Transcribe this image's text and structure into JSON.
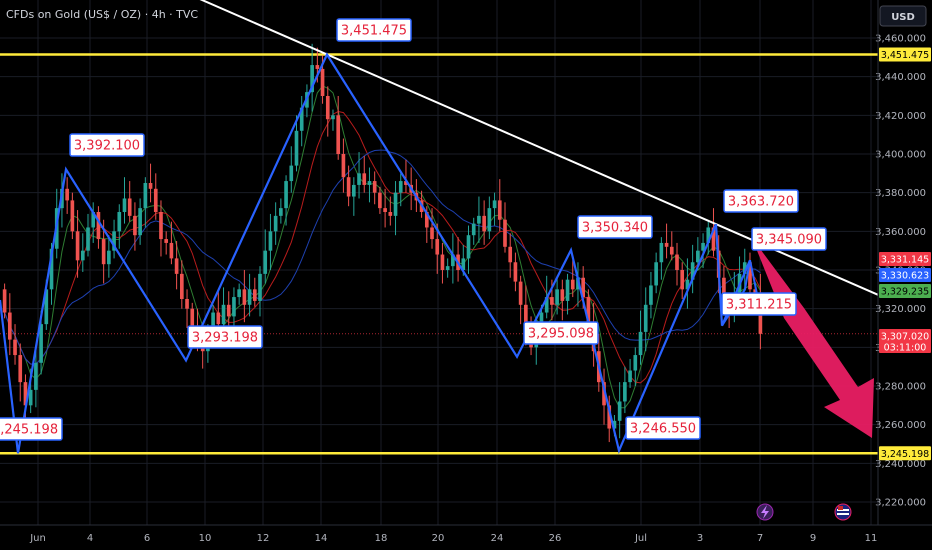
{
  "header": {
    "symbol_title": "CFDs on Gold (US$ / OZ) · 4h · TVC",
    "currency_button": "USD"
  },
  "colors": {
    "background": "#000000",
    "up_candle": "#26a69a",
    "down_candle": "#ef5350",
    "zigzag": "#2962ff",
    "trendline": "#ffffff",
    "level_line": "#ffeb3b",
    "arrow": "#e91e63",
    "callout_text": "#e5223a"
  },
  "chart_data": {
    "type": "candlestick",
    "ylim": [
      3210,
      3470
    ],
    "y_ticks": [
      "3,220.000",
      "3,240.000",
      "3,260.000",
      "3,280.000",
      "3,300.000",
      "3,320.000",
      "3,340.000",
      "3,360.000",
      "3,380.000",
      "3,400.000",
      "3,420.000",
      "3,440.000",
      "3,460.000"
    ],
    "x_ticks": [
      "Jun",
      "4",
      "6",
      "10",
      "12",
      "14",
      "18",
      "20",
      "24",
      "26",
      "Jul",
      "3",
      "7",
      "9",
      "11"
    ],
    "horizontal_levels": [
      3451.475,
      3245.198
    ],
    "zigzag_points": [
      {
        "date": "2025-05-29 12:00",
        "price": 3245.198,
        "label": "3,245.198"
      },
      {
        "date": "2025-06-03 08:00",
        "price": 3392.1,
        "label": "3,392.100"
      },
      {
        "date": "2025-06-09 00:00",
        "price": 3293.198,
        "label": "3,293.198"
      },
      {
        "date": "2025-06-16 04:00",
        "price": 3451.475,
        "label": "3,451.475"
      },
      {
        "date": "2025-06-24 20:00",
        "price": 3295.098,
        "label": "3,295.098"
      },
      {
        "date": "2025-06-27 08:00",
        "price": 3350.34,
        "label": "3,350.340"
      },
      {
        "date": "2025-06-30 00:00",
        "price": 3246.55,
        "label": "3,246.550"
      },
      {
        "date": "2025-07-03 08:00",
        "price": 3363.72,
        "label": "3,363.720"
      },
      {
        "date": "2025-07-04 00:00",
        "price": 3311.215,
        "label": "3,311.215"
      },
      {
        "date": "2025-07-07 00:00",
        "price": 3345.09,
        "label": "3,345.090"
      }
    ],
    "trendline": [
      {
        "date": "2025-06-16 04:00",
        "price": 3451.475
      },
      {
        "date": "2025-07-03 08:00",
        "price": 3363.72
      }
    ],
    "projection_arrow": {
      "from_price": 3345.09,
      "to_price": 3245.198
    },
    "price_tags": [
      {
        "label": "3,451.475",
        "price": 3451.475,
        "bg": "#ffeb3b",
        "fg": "#000000"
      },
      {
        "label": "3,331.145",
        "price": 3331.145,
        "bg": "#f23645",
        "fg": "#ffffff"
      },
      {
        "label": "3,330.623",
        "price": 3330.623,
        "bg": "#2962ff",
        "fg": "#ffffff"
      },
      {
        "label": "3,329.235",
        "price": 3329.235,
        "bg": "#4caf50",
        "fg": "#000000"
      },
      {
        "label": "3,307.020",
        "price": 3307.02,
        "bg": "#f23645",
        "fg": "#ffffff",
        "sub": "03:11:00"
      },
      {
        "label": "3,245.198",
        "price": 3245.198,
        "bg": "#ffeb3b",
        "fg": "#000000"
      }
    ],
    "current_price": 3307.02,
    "countdown": "03:11:00",
    "candles_closes": [
      3318,
      3304,
      3296,
      3282,
      3270,
      3278,
      3292,
      3312,
      3330,
      3351,
      3372,
      3382,
      3376,
      3360,
      3345,
      3350,
      3362,
      3370,
      3356,
      3343,
      3350,
      3360,
      3370,
      3377,
      3368,
      3358,
      3372,
      3385,
      3382,
      3370,
      3356,
      3354,
      3346,
      3338,
      3325,
      3320,
      3310,
      3302,
      3298,
      3306,
      3318,
      3312,
      3322,
      3316,
      3326,
      3330,
      3322,
      3330,
      3324,
      3338,
      3350,
      3360,
      3368,
      3372,
      3386,
      3394,
      3412,
      3424,
      3432,
      3446,
      3444,
      3430,
      3418,
      3420,
      3400,
      3388,
      3378,
      3384,
      3390,
      3384,
      3386,
      3380,
      3372,
      3370,
      3368,
      3380,
      3386,
      3384,
      3380,
      3376,
      3370,
      3362,
      3356,
      3348,
      3340,
      3342,
      3348,
      3340,
      3346,
      3358,
      3364,
      3368,
      3360,
      3372,
      3376,
      3366,
      3352,
      3344,
      3334,
      3322,
      3308,
      3300,
      3308,
      3318,
      3326,
      3322,
      3330,
      3324,
      3335,
      3330,
      3336,
      3326,
      3312,
      3298,
      3282,
      3270,
      3258,
      3262,
      3272,
      3282,
      3288,
      3296,
      3308,
      3322,
      3332,
      3344,
      3354,
      3352,
      3348,
      3340,
      3330,
      3335,
      3344,
      3350,
      3354,
      3362,
      3350,
      3336,
      3322,
      3320,
      3328,
      3338,
      3344,
      3330,
      3328,
      3307
    ]
  }
}
